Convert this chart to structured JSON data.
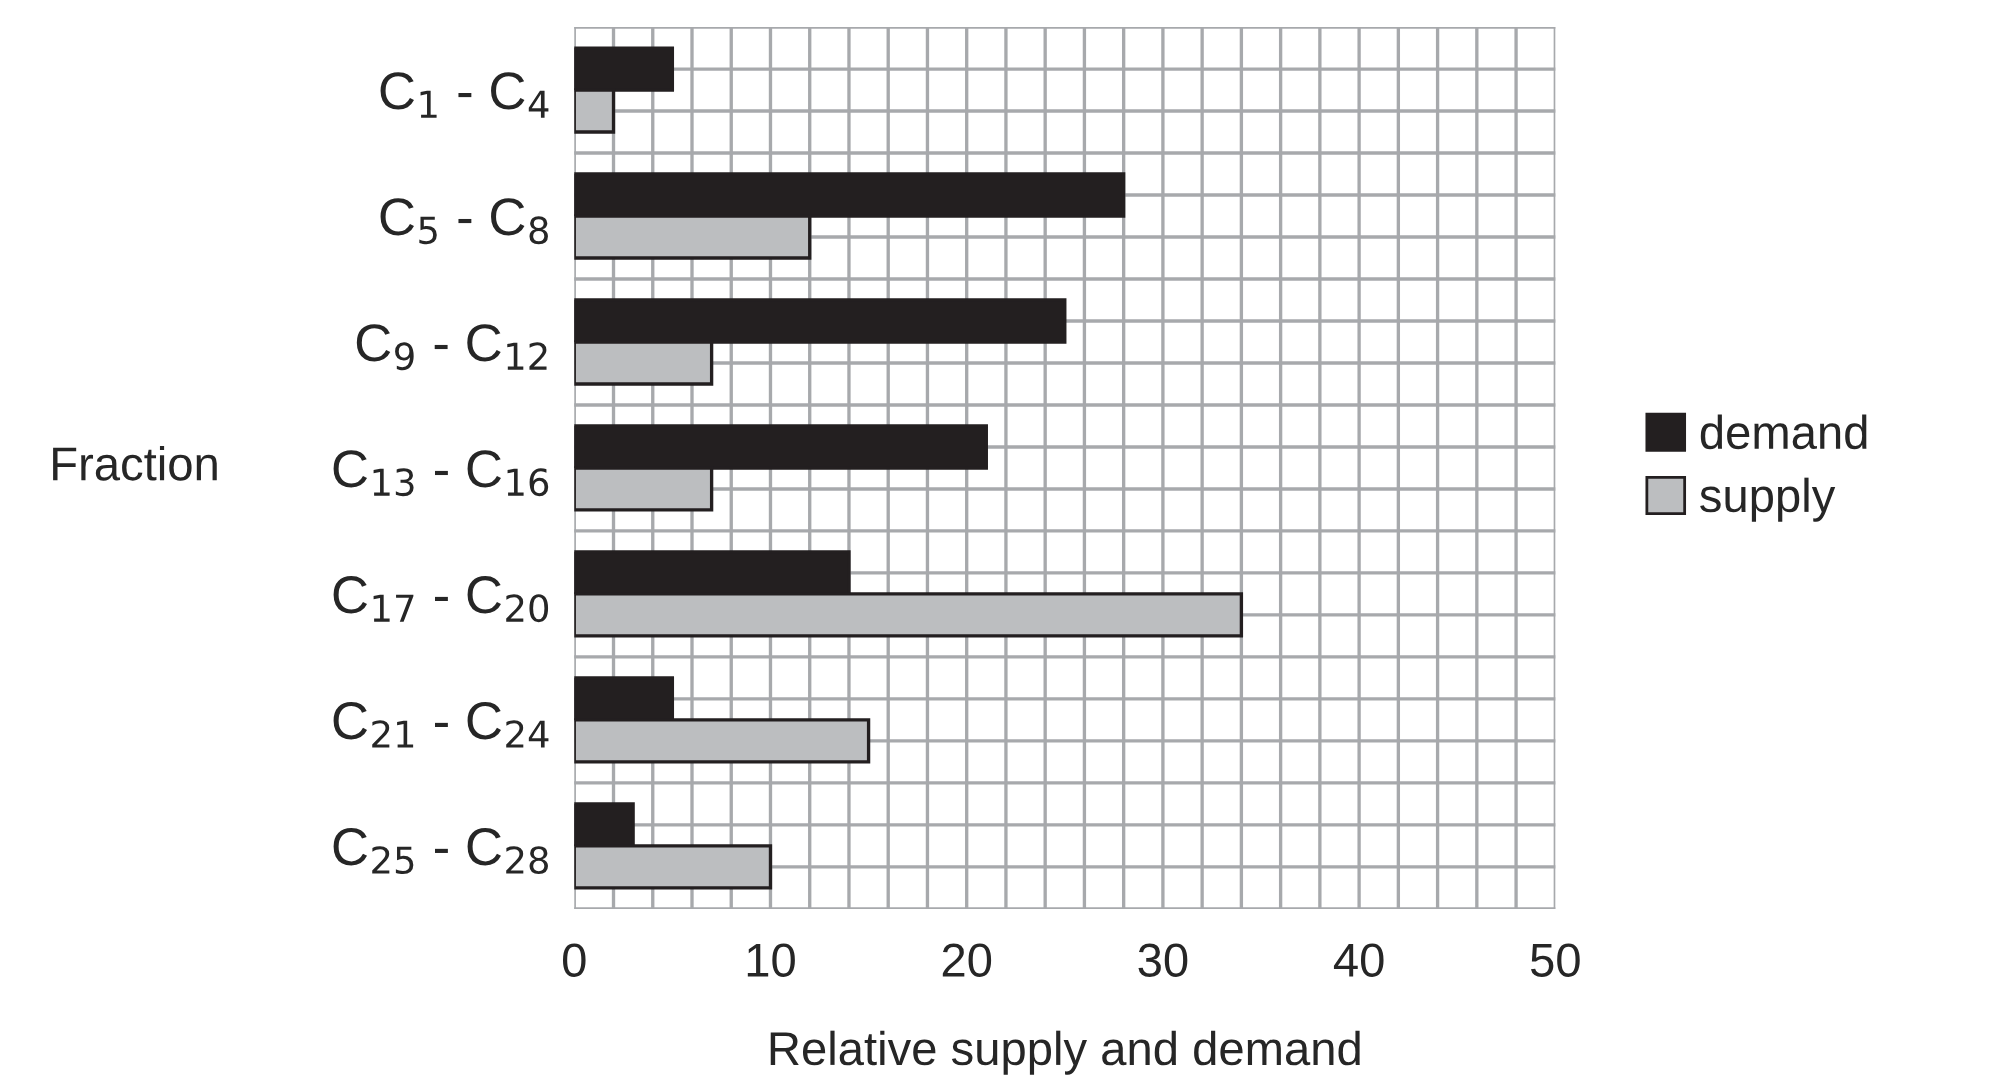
{
  "chart_data": {
    "type": "bar",
    "orientation": "horizontal",
    "categories": [
      "C$_{1}$ - C$_{4}$",
      "C$_{5}$ - C$_{8}$",
      "C$_{9}$ - C$_{12}$",
      "C$_{13}$ - C$_{16}$",
      "C$_{17}$ - C$_{20}$",
      "C$_{21}$ - C$_{24}$",
      "C$_{25}$ - C$_{28}$"
    ],
    "series": [
      {
        "name": "demand",
        "color": "#231f20",
        "values": [
          5,
          28,
          25,
          21,
          14,
          5,
          3
        ]
      },
      {
        "name": "supply",
        "color": "#bcbec0",
        "values": [
          2,
          12,
          7,
          7,
          34,
          15,
          10
        ]
      }
    ],
    "xlabel": "Relative supply and demand",
    "ylabel": "Fraction",
    "xlim": [
      0,
      50
    ],
    "xticks": [
      0,
      10,
      20,
      30,
      40,
      50
    ],
    "grid": true,
    "legend": "right"
  }
}
